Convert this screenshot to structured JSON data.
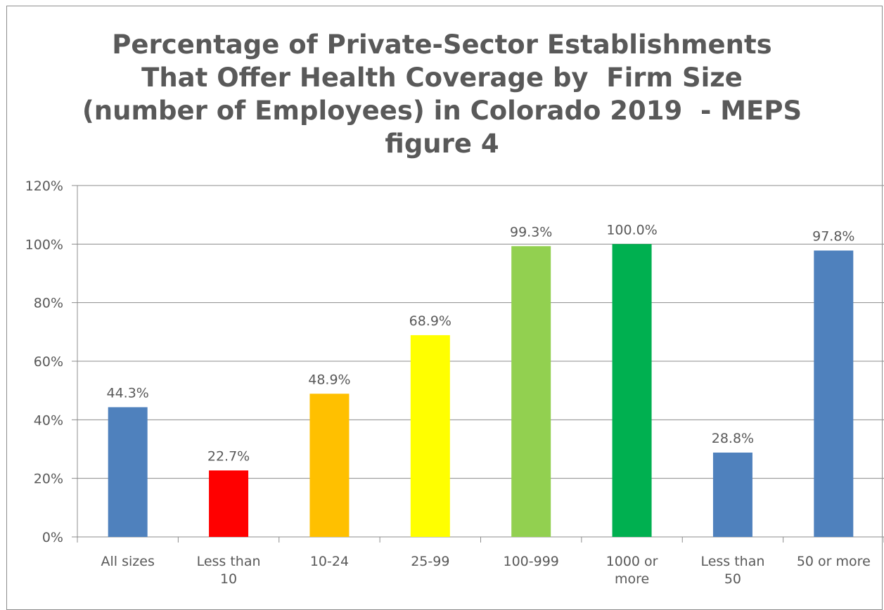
{
  "chart_data": {
    "type": "bar",
    "title_lines": [
      "Percentage of Private-Sector Establishments",
      "That Offer Health Coverage by  Firm Size",
      "(number of Employees) in Colorado 2019  - MEPS",
      "figure 4"
    ],
    "categories": [
      [
        "All sizes"
      ],
      [
        "Less than",
        "10"
      ],
      [
        "10-24"
      ],
      [
        "25-99"
      ],
      [
        "100-999"
      ],
      [
        "1000 or",
        "more"
      ],
      [
        "Less than",
        "50"
      ],
      [
        "50 or more"
      ]
    ],
    "values": [
      44.3,
      22.7,
      48.9,
      68.9,
      99.3,
      100.0,
      28.8,
      97.8
    ],
    "data_labels": [
      "44.3%",
      "22.7%",
      "48.9%",
      "68.9%",
      "99.3%",
      "100.0%",
      "28.8%",
      "97.8%"
    ],
    "colors": [
      "#4f81bd",
      "#ff0000",
      "#ffc000",
      "#ffff00",
      "#92d050",
      "#00b050",
      "#4f81bd",
      "#4f81bd"
    ],
    "ylim": [
      0,
      120
    ],
    "yticks": [
      0,
      20,
      40,
      60,
      80,
      100,
      120
    ],
    "ytick_labels": [
      "0%",
      "20%",
      "40%",
      "60%",
      "80%",
      "100%",
      "120%"
    ],
    "grid": true,
    "legend": "none"
  },
  "colors": {
    "gridline": "#8c8c8c",
    "axis": "#8c8c8c",
    "text": "#595959"
  }
}
